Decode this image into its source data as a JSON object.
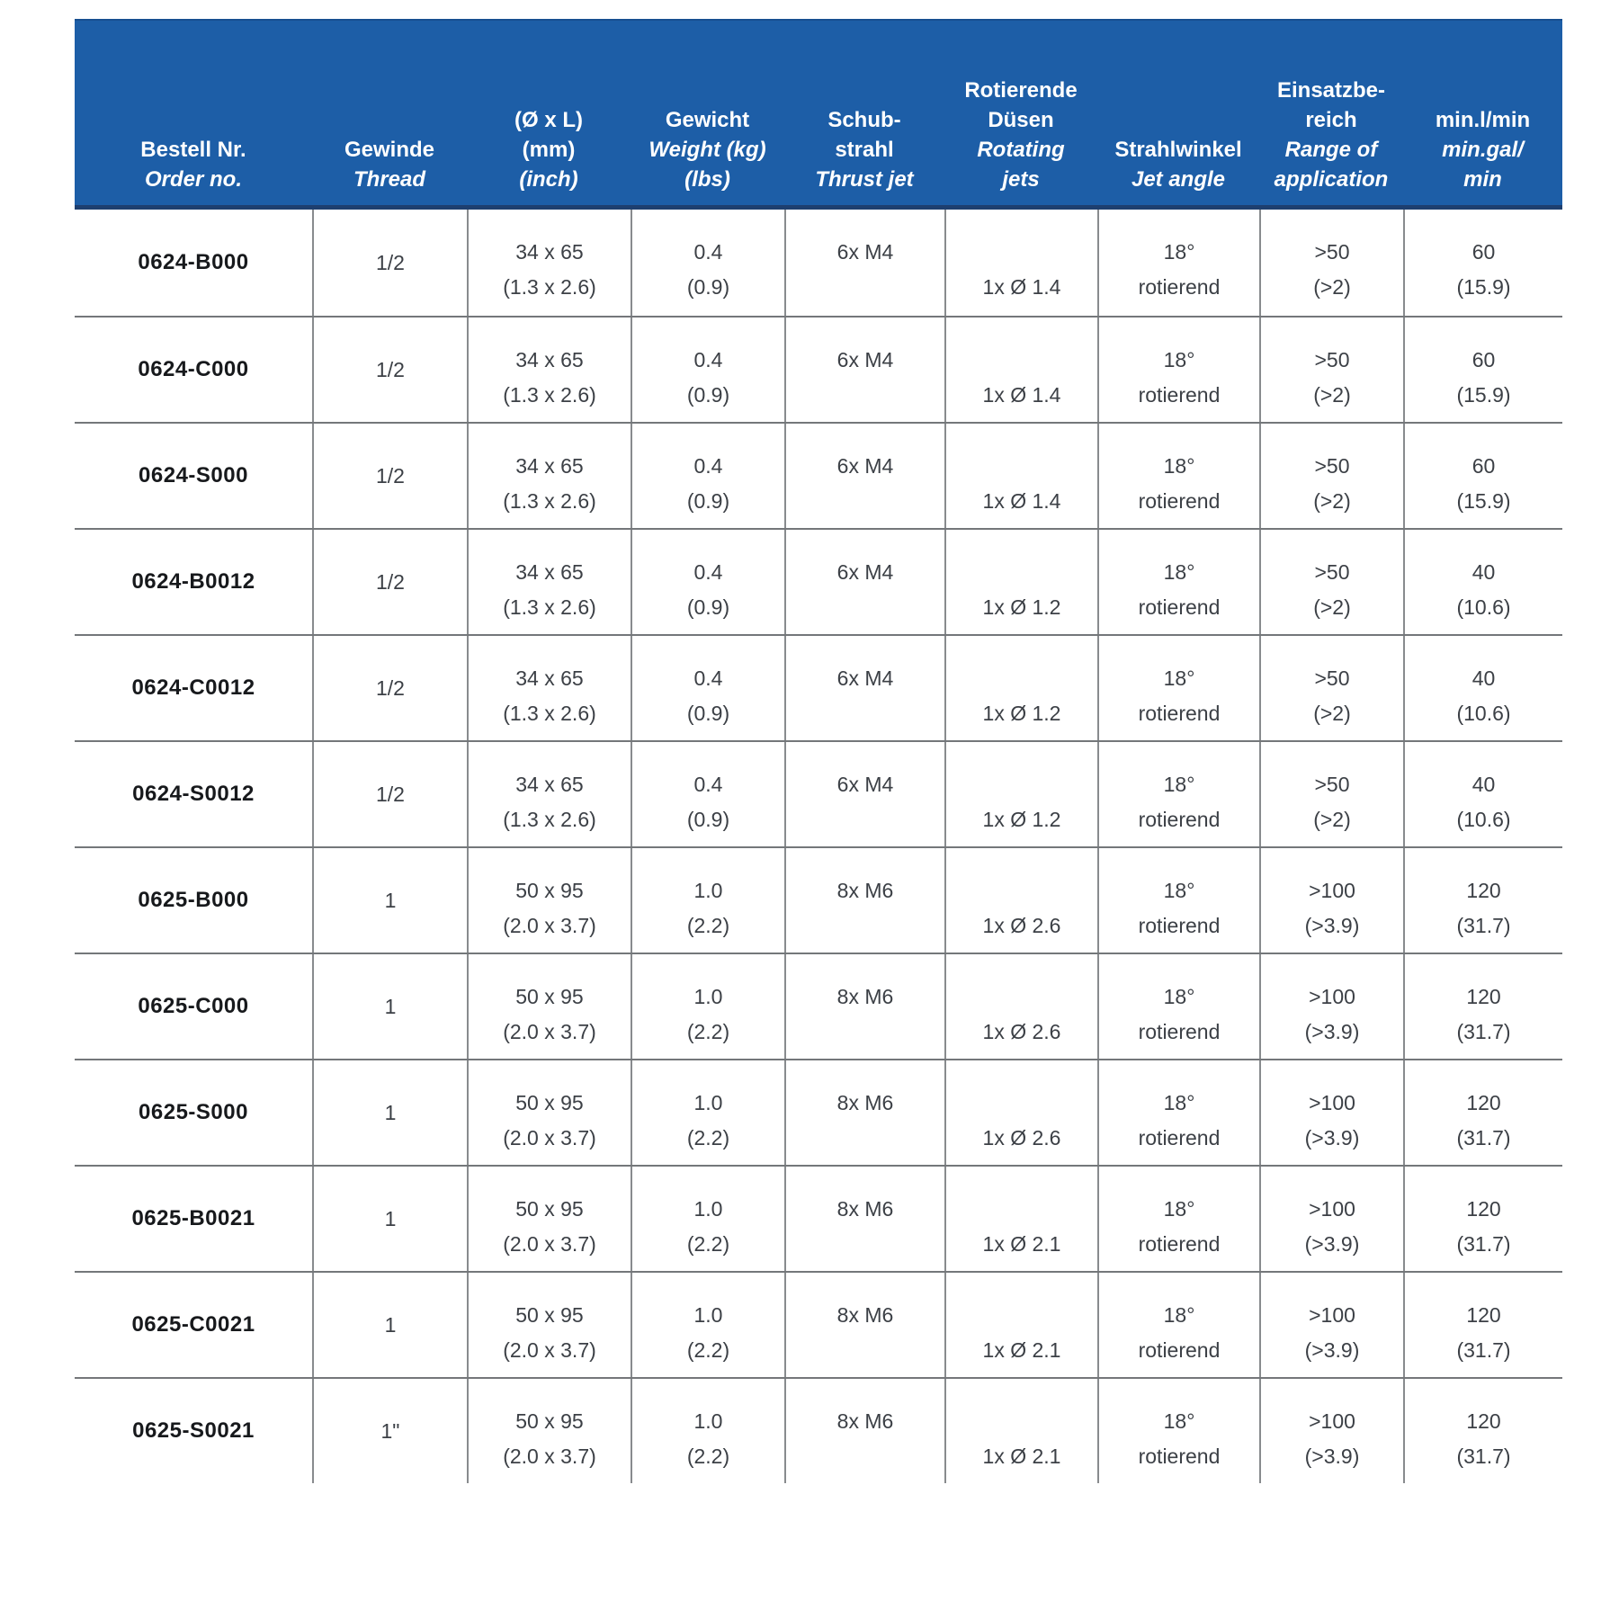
{
  "colors": {
    "header_bg": "#1d5ea7",
    "header_bottom_edge": "#1e3f6f",
    "header_text": "#ffffff",
    "grid_line": "#74777a",
    "body_text": "#3c4046"
  },
  "table": {
    "header": {
      "columns": [
        {
          "lines": [
            "Bestell Nr.",
            "Order no."
          ]
        },
        {
          "lines": [
            "Gewinde",
            "Thread"
          ]
        },
        {
          "lines": [
            "(Ø x L)",
            "(mm)",
            "(inch)"
          ]
        },
        {
          "lines": [
            "Gewicht",
            "Weight (kg)",
            "(lbs)"
          ]
        },
        {
          "lines": [
            "Schub-",
            "strahl",
            "Thrust jet"
          ]
        },
        {
          "lines": [
            "Rotierende",
            "Düsen",
            "Rotating",
            "jets"
          ]
        },
        {
          "lines": [
            "Strahlwinkel",
            "Jet angle"
          ]
        },
        {
          "lines": [
            "Einsatzbe-",
            "reich",
            "Range of",
            "application"
          ]
        },
        {
          "lines": [
            "min.l/min",
            "min.gal/",
            "min"
          ]
        }
      ]
    },
    "rows": [
      {
        "order": "0624-B000",
        "thread": "1/2",
        "dim_mm": "34 x 65",
        "dim_inch": "(1.3 x 2.6)",
        "weight_kg": "0.4",
        "weight_lbs": "(0.9)",
        "thrust_jet": "6x M4",
        "rotating_jets": "1x Ø 1.4",
        "jet_angle_1": "18°",
        "jet_angle_2": "rotierend",
        "range_1": ">50",
        "range_2": "(>2)",
        "flow_1": "60",
        "flow_2": "(15.9)"
      },
      {
        "order": "0624-C000",
        "thread": "1/2",
        "dim_mm": "34 x 65",
        "dim_inch": "(1.3 x 2.6)",
        "weight_kg": "0.4",
        "weight_lbs": "(0.9)",
        "thrust_jet": "6x M4",
        "rotating_jets": "1x Ø 1.4",
        "jet_angle_1": "18°",
        "jet_angle_2": "rotierend",
        "range_1": ">50",
        "range_2": "(>2)",
        "flow_1": "60",
        "flow_2": "(15.9)"
      },
      {
        "order": "0624-S000",
        "thread": "1/2",
        "dim_mm": "34 x 65",
        "dim_inch": "(1.3 x 2.6)",
        "weight_kg": "0.4",
        "weight_lbs": "(0.9)",
        "thrust_jet": "6x M4",
        "rotating_jets": "1x Ø 1.4",
        "jet_angle_1": "18°",
        "jet_angle_2": "rotierend",
        "range_1": ">50",
        "range_2": "(>2)",
        "flow_1": "60",
        "flow_2": "(15.9)"
      },
      {
        "order": "0624-B0012",
        "thread": "1/2",
        "dim_mm": "34 x 65",
        "dim_inch": "(1.3 x 2.6)",
        "weight_kg": "0.4",
        "weight_lbs": "(0.9)",
        "thrust_jet": "6x M4",
        "rotating_jets": "1x Ø 1.2",
        "jet_angle_1": "18°",
        "jet_angle_2": "rotierend",
        "range_1": ">50",
        "range_2": "(>2)",
        "flow_1": "40",
        "flow_2": "(10.6)"
      },
      {
        "order": "0624-C0012",
        "thread": "1/2",
        "dim_mm": "34 x 65",
        "dim_inch": "(1.3 x 2.6)",
        "weight_kg": "0.4",
        "weight_lbs": "(0.9)",
        "thrust_jet": "6x M4",
        "rotating_jets": "1x Ø 1.2",
        "jet_angle_1": "18°",
        "jet_angle_2": "rotierend",
        "range_1": ">50",
        "range_2": "(>2)",
        "flow_1": "40",
        "flow_2": "(10.6)"
      },
      {
        "order": "0624-S0012",
        "thread": "1/2",
        "dim_mm": "34 x 65",
        "dim_inch": "(1.3 x 2.6)",
        "weight_kg": "0.4",
        "weight_lbs": "(0.9)",
        "thrust_jet": "6x M4",
        "rotating_jets": "1x Ø 1.2",
        "jet_angle_1": "18°",
        "jet_angle_2": "rotierend",
        "range_1": ">50",
        "range_2": "(>2)",
        "flow_1": "40",
        "flow_2": "(10.6)"
      },
      {
        "order": "0625-B000",
        "thread": "1",
        "dim_mm": "50 x 95",
        "dim_inch": "(2.0 x 3.7)",
        "weight_kg": "1.0",
        "weight_lbs": "(2.2)",
        "thrust_jet": "8x M6",
        "rotating_jets": "1x Ø 2.6",
        "jet_angle_1": "18°",
        "jet_angle_2": "rotierend",
        "range_1": ">100",
        "range_2": "(>3.9)",
        "flow_1": "120",
        "flow_2": "(31.7)"
      },
      {
        "order": "0625-C000",
        "thread": "1",
        "dim_mm": "50 x 95",
        "dim_inch": "(2.0 x 3.7)",
        "weight_kg": "1.0",
        "weight_lbs": "(2.2)",
        "thrust_jet": "8x M6",
        "rotating_jets": "1x Ø 2.6",
        "jet_angle_1": "18°",
        "jet_angle_2": "rotierend",
        "range_1": ">100",
        "range_2": "(>3.9)",
        "flow_1": "120",
        "flow_2": "(31.7)"
      },
      {
        "order": "0625-S000",
        "thread": "1",
        "dim_mm": "50 x 95",
        "dim_inch": "(2.0 x 3.7)",
        "weight_kg": "1.0",
        "weight_lbs": "(2.2)",
        "thrust_jet": "8x M6",
        "rotating_jets": "1x Ø 2.6",
        "jet_angle_1": "18°",
        "jet_angle_2": "rotierend",
        "range_1": ">100",
        "range_2": "(>3.9)",
        "flow_1": "120",
        "flow_2": "(31.7)"
      },
      {
        "order": "0625-B0021",
        "thread": "1",
        "dim_mm": "50 x 95",
        "dim_inch": "(2.0 x 3.7)",
        "weight_kg": "1.0",
        "weight_lbs": "(2.2)",
        "thrust_jet": "8x M6",
        "rotating_jets": "1x Ø 2.1",
        "jet_angle_1": "18°",
        "jet_angle_2": "rotierend",
        "range_1": ">100",
        "range_2": "(>3.9)",
        "flow_1": "120",
        "flow_2": "(31.7)"
      },
      {
        "order": "0625-C0021",
        "thread": "1",
        "dim_mm": "50 x 95",
        "dim_inch": "(2.0 x 3.7)",
        "weight_kg": "1.0",
        "weight_lbs": "(2.2)",
        "thrust_jet": "8x M6",
        "rotating_jets": "1x Ø 2.1",
        "jet_angle_1": "18°",
        "jet_angle_2": "rotierend",
        "range_1": ">100",
        "range_2": "(>3.9)",
        "flow_1": "120",
        "flow_2": "(31.7)"
      },
      {
        "order": "0625-S0021",
        "thread": "1\"",
        "dim_mm": "50 x 95",
        "dim_inch": "(2.0 x 3.7)",
        "weight_kg": "1.0",
        "weight_lbs": "(2.2)",
        "thrust_jet": "8x M6",
        "rotating_jets": "1x Ø 2.1",
        "jet_angle_1": "18°",
        "jet_angle_2": "rotierend",
        "range_1": ">100",
        "range_2": "(>3.9)",
        "flow_1": "120",
        "flow_2": "(31.7)"
      }
    ]
  }
}
